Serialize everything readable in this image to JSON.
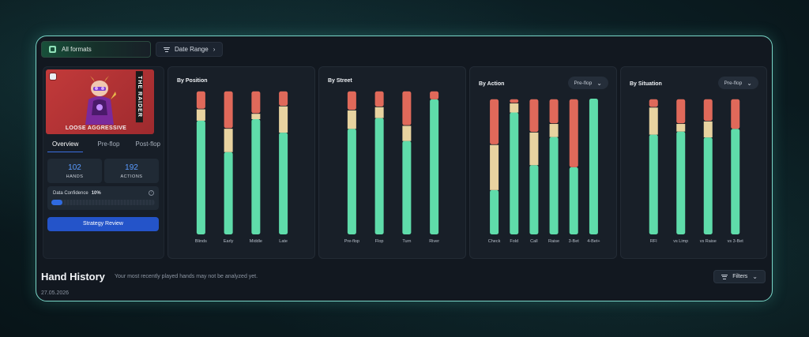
{
  "topbar": {
    "format_label": "All formats",
    "date_range_label": "Date Range"
  },
  "profile": {
    "card_tag": "THE RAIDER",
    "card_label": "LOOSE AGGRESSIVE",
    "card_color": "#c23a3a",
    "tabs": [
      {
        "label": "Overview",
        "active": true
      },
      {
        "label": "Pre-flop",
        "active": false
      },
      {
        "label": "Post-flop",
        "active": false
      }
    ],
    "stats": [
      {
        "value": "102",
        "label": "HANDS"
      },
      {
        "value": "192",
        "label": "ACTIONS"
      }
    ],
    "confidence": {
      "label": "Data Confidence",
      "value_text": "10%",
      "value": 0.1
    },
    "review_button": "Strategy Review"
  },
  "colors": {
    "green": "#5fdcaa",
    "tan": "#e8d3a0",
    "red": "#e0695a",
    "accent": "#2454c9"
  },
  "chart_data": [
    {
      "type": "bar",
      "stacked": true,
      "title": "By Position",
      "categories": [
        "Blinds",
        "Early",
        "Middle",
        "Late"
      ],
      "series": [
        {
          "values": [
            76,
            55,
            77,
            68
          ]
        },
        {
          "values": [
            8,
            16,
            4,
            18
          ]
        },
        {
          "values": [
            12,
            25,
            15,
            10
          ]
        }
      ]
    },
    {
      "type": "bar",
      "stacked": true,
      "title": "By Street",
      "categories": [
        "Pre-flop",
        "Flop",
        "Turn",
        "River"
      ],
      "series": [
        {
          "values": [
            72,
            81,
            65,
            94
          ]
        },
        {
          "values": [
            13,
            8,
            11,
            0
          ]
        },
        {
          "values": [
            13,
            11,
            24,
            6
          ]
        }
      ]
    },
    {
      "type": "bar",
      "stacked": true,
      "title": "By Action",
      "dropdown": "Pre-flop",
      "categories": [
        "Check",
        "Fold",
        "Call",
        "Raise",
        "3-Bet",
        "4-Bet+"
      ],
      "series": [
        {
          "values": [
            32,
            88,
            50,
            71,
            49,
            100
          ]
        },
        {
          "values": [
            33,
            7,
            24,
            10,
            0,
            0
          ]
        },
        {
          "values": [
            33,
            3,
            24,
            18,
            50,
            0
          ]
        }
      ]
    },
    {
      "type": "bar",
      "stacked": true,
      "title": "By Situation",
      "dropdown": "Pre-flop",
      "categories": [
        "RFI",
        "vs Limp",
        "vs Raise",
        "vs 3-Bet"
      ],
      "series": [
        {
          "values": [
            72,
            75,
            70,
            77
          ]
        },
        {
          "values": [
            20,
            6,
            12,
            0
          ]
        },
        {
          "values": [
            6,
            18,
            16,
            22
          ]
        }
      ]
    }
  ],
  "hand_history": {
    "title": "Hand History",
    "note": "Your most recently played hands may not be analyzed yet.",
    "date": "27.05.2026",
    "filters_label": "Filters"
  }
}
